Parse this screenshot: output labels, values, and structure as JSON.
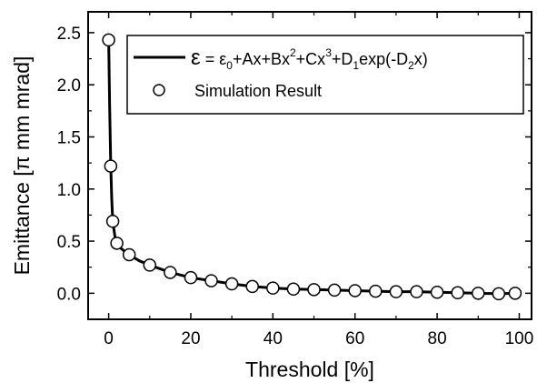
{
  "chart_data": {
    "type": "line",
    "title": "",
    "xlabel": "Threshold [%]",
    "ylabel_parts": {
      "prefix": "Emittance [",
      "pi": "π",
      "suffix": " mm mrad]"
    },
    "xlim": [
      -5,
      103
    ],
    "ylim": [
      -0.25,
      2.7
    ],
    "xticks": [
      0,
      20,
      40,
      60,
      80,
      100
    ],
    "yticks": [
      0.0,
      0.5,
      1.0,
      1.5,
      2.0,
      2.5
    ],
    "ytick_labels": [
      "0.0",
      "0.5",
      "1.0",
      "1.5",
      "2.0",
      "2.5"
    ],
    "legend_position": "top-right",
    "legend": {
      "fit": {
        "eps": "ε",
        "eq": " = ε",
        "s0": "0",
        "t1": "+Ax+Bx",
        "p2": "2",
        "t2": "+Cx",
        "p3": "3",
        "t3": "+D",
        "s1": "1",
        "t4": "exp(-D",
        "s2": "2",
        "t5": "x)"
      },
      "sim_label": "Simulation Result"
    },
    "series": [
      {
        "name": "Simulation Result",
        "kind": "scatter",
        "x": [
          0,
          0.5,
          1,
          2,
          5,
          10,
          15,
          20,
          25,
          30,
          35,
          40,
          45,
          50,
          55,
          60,
          65,
          70,
          75,
          80,
          85,
          90,
          95,
          99
        ],
        "y": [
          2.43,
          1.22,
          0.69,
          0.48,
          0.37,
          0.27,
          0.2,
          0.15,
          0.12,
          0.09,
          0.065,
          0.05,
          0.04,
          0.035,
          0.03,
          0.025,
          0.02,
          0.015,
          0.015,
          0.01,
          0.005,
          0.0,
          -0.005,
          0.0
        ]
      },
      {
        "name": "fit",
        "kind": "line",
        "x": [
          0,
          0.25,
          0.5,
          0.75,
          1,
          1.5,
          2,
          3,
          5,
          7.5,
          10,
          15,
          20,
          25,
          30,
          35,
          40,
          45,
          50,
          55,
          60,
          65,
          70,
          75,
          80,
          85,
          90,
          95,
          99
        ],
        "y": [
          2.43,
          1.78,
          1.22,
          0.9,
          0.69,
          0.55,
          0.48,
          0.43,
          0.37,
          0.31,
          0.27,
          0.2,
          0.15,
          0.12,
          0.09,
          0.065,
          0.05,
          0.04,
          0.035,
          0.03,
          0.025,
          0.02,
          0.015,
          0.015,
          0.01,
          0.005,
          0.0,
          -0.005,
          0.0
        ]
      }
    ]
  }
}
